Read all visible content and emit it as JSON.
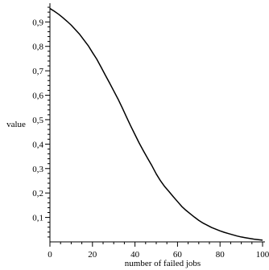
{
  "chart_data": {
    "type": "line",
    "xlabel": "number of failed jobs",
    "ylabel": "value",
    "xlim": [
      0,
      100
    ],
    "ylim": [
      0,
      0.97
    ],
    "x_ticks": [
      0,
      20,
      40,
      60,
      80,
      100
    ],
    "x_tick_labels": [
      "0",
      "20",
      "40",
      "60",
      "80",
      "100"
    ],
    "y_ticks": [
      0.1,
      0.2,
      0.3,
      0.4,
      0.5,
      0.6,
      0.7,
      0.8,
      0.9
    ],
    "y_tick_labels": [
      "0,1",
      "0,2",
      "0,3",
      "0,4",
      "0,5",
      "0,6",
      "0,7",
      "0,8",
      "0,9"
    ],
    "x_minor_step": 5,
    "y_minor_step": 0.02,
    "grid": false,
    "series": [
      {
        "color": "#000000",
        "x": [
          0,
          2,
          4,
          6,
          8,
          10,
          12,
          14,
          16,
          18,
          20,
          22,
          24,
          26,
          28,
          30,
          32,
          34,
          36,
          38,
          40,
          42,
          44,
          46,
          48,
          50,
          52,
          54,
          56,
          58,
          60,
          62,
          64,
          66,
          68,
          70,
          72,
          74,
          76,
          78,
          80,
          82,
          84,
          86,
          88,
          90,
          92,
          94,
          96,
          98,
          100
        ],
        "y": [
          0.955,
          0.944,
          0.932,
          0.918,
          0.903,
          0.887,
          0.868,
          0.849,
          0.826,
          0.803,
          0.775,
          0.748,
          0.716,
          0.683,
          0.651,
          0.618,
          0.585,
          0.549,
          0.511,
          0.474,
          0.439,
          0.404,
          0.372,
          0.341,
          0.311,
          0.278,
          0.25,
          0.226,
          0.206,
          0.185,
          0.165,
          0.145,
          0.129,
          0.115,
          0.101,
          0.088,
          0.077,
          0.068,
          0.059,
          0.052,
          0.045,
          0.039,
          0.034,
          0.029,
          0.024,
          0.02,
          0.017,
          0.014,
          0.011,
          0.009,
          0.007
        ]
      }
    ]
  }
}
